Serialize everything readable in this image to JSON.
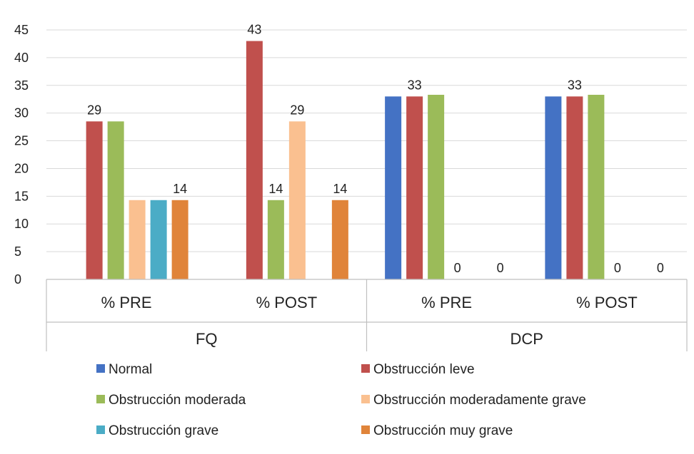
{
  "chart_data": {
    "type": "bar",
    "title": "",
    "xlabel": "",
    "ylabel": "",
    "ylim": [
      0,
      45
    ],
    "yticks": [
      "0",
      "5",
      "10",
      "15",
      "20",
      "25",
      "30",
      "35",
      "40",
      "45"
    ],
    "groups": [
      "FQ",
      "DCP"
    ],
    "categories": [
      "% PRE",
      "% POST",
      "% PRE",
      "% POST"
    ],
    "category_group": [
      0,
      0,
      1,
      1
    ],
    "grid": true,
    "legend_position": "bottom",
    "series": [
      {
        "name": "Normal",
        "color": "#4472C4",
        "values": [
          0,
          0,
          33,
          33
        ]
      },
      {
        "name": "Obstrucción leve",
        "color": "#C0504D",
        "values": [
          28.5,
          43,
          33,
          33
        ]
      },
      {
        "name": "Obstrucción moderada",
        "color": "#9BBB59",
        "values": [
          28.5,
          14.3,
          33.3,
          33.3
        ]
      },
      {
        "name": "Obstrucción moderadamente grave",
        "color": "#FAC090",
        "values": [
          14.3,
          28.5,
          0,
          0
        ]
      },
      {
        "name": "Obstrucción grave",
        "color": "#4BACC6",
        "values": [
          14.3,
          0,
          0,
          0
        ]
      },
      {
        "name": "Obstrucción muy grave",
        "color": "#E0843A",
        "values": [
          14.3,
          14.3,
          0,
          0
        ]
      }
    ],
    "data_labels": [
      {
        "category": 0,
        "series": 1,
        "text": "29"
      },
      {
        "category": 0,
        "series": 5,
        "text": "14"
      },
      {
        "category": 1,
        "series": 1,
        "text": "43"
      },
      {
        "category": 1,
        "series": 2,
        "text": "14"
      },
      {
        "category": 1,
        "series": 3,
        "text": "29"
      },
      {
        "category": 1,
        "series": 5,
        "text": "14"
      },
      {
        "category": 2,
        "series": 1,
        "text": "33"
      },
      {
        "category": 2,
        "series": 3,
        "text": "0"
      },
      {
        "category": 2,
        "series": 5,
        "text": "0"
      },
      {
        "category": 3,
        "series": 1,
        "text": "33"
      },
      {
        "category": 3,
        "series": 3,
        "text": "0"
      },
      {
        "category": 3,
        "series": 5,
        "text": "0"
      }
    ]
  }
}
